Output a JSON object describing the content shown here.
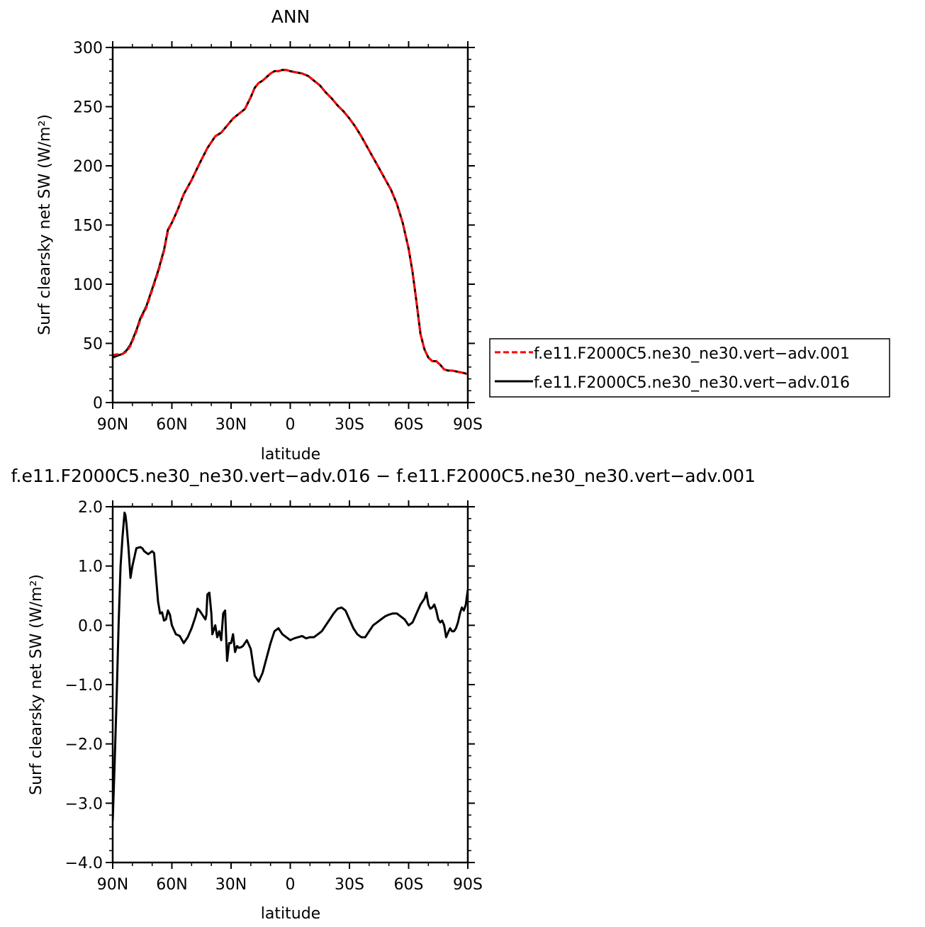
{
  "chart_data": [
    {
      "type": "line",
      "title": "ANN",
      "xlabel": "latitude",
      "ylabel": "Surf clearsky net SW (W/m²)",
      "xlim": [
        90,
        -90
      ],
      "ylim": [
        0,
        300
      ],
      "x_ticks": [
        {
          "value": 90,
          "label": "90N"
        },
        {
          "value": 60,
          "label": "60N"
        },
        {
          "value": 30,
          "label": "30N"
        },
        {
          "value": 0,
          "label": "0"
        },
        {
          "value": -30,
          "label": "30S"
        },
        {
          "value": -60,
          "label": "60S"
        },
        {
          "value": -90,
          "label": "90S"
        }
      ],
      "y_ticks": [
        {
          "value": 0,
          "label": "0"
        },
        {
          "value": 50,
          "label": "50"
        },
        {
          "value": 100,
          "label": "100"
        },
        {
          "value": 150,
          "label": "150"
        },
        {
          "value": 200,
          "label": "200"
        },
        {
          "value": 250,
          "label": "250"
        },
        {
          "value": 300,
          "label": "300"
        }
      ],
      "legend": {
        "placement": "right"
      },
      "series": [
        {
          "name": "f.e11.F2000C5.ne30_ne30.vert−adv.001",
          "color": "#ff0000",
          "dash": "dashed",
          "x": [
            90,
            87,
            85,
            83,
            81,
            78,
            76,
            73,
            70,
            67,
            64,
            62,
            60,
            57,
            54,
            50,
            46,
            42,
            38,
            35,
            33,
            31,
            29,
            26,
            23,
            20,
            18,
            16,
            14,
            12,
            10,
            8,
            6,
            4,
            2,
            0,
            -3,
            -6,
            -9,
            -12,
            -15,
            -18,
            -21,
            -24,
            -27,
            -30,
            -33,
            -36,
            -39,
            -42,
            -45,
            -48,
            -51,
            -54,
            -57,
            -60,
            -62,
            -64,
            -66,
            -68,
            -70,
            -72,
            -74,
            -76,
            -78,
            -80,
            -82,
            -85,
            -88,
            -90
          ],
          "y": [
            40,
            41,
            41,
            43,
            48,
            60,
            70,
            80,
            95,
            110,
            128,
            145,
            152,
            163,
            176,
            188,
            202,
            215,
            225,
            228,
            232,
            236,
            240,
            244,
            248,
            258,
            266,
            270,
            272,
            275,
            278,
            280,
            280,
            281,
            281,
            280,
            279,
            278,
            276,
            272,
            268,
            262,
            257,
            251,
            246,
            240,
            233,
            225,
            216,
            207,
            198,
            189,
            180,
            168,
            152,
            130,
            110,
            85,
            58,
            45,
            38,
            35,
            35,
            32,
            28,
            27,
            27,
            26,
            25,
            24
          ]
        },
        {
          "name": "f.e11.F2000C5.ne30_ne30.vert−adv.016",
          "color": "#000000",
          "dash": "solid",
          "x": [
            90,
            87,
            85,
            83,
            81,
            78,
            76,
            73,
            70,
            67,
            64,
            62,
            60,
            57,
            54,
            50,
            46,
            42,
            38,
            35,
            33,
            31,
            29,
            26,
            23,
            20,
            18,
            16,
            14,
            12,
            10,
            8,
            6,
            4,
            2,
            0,
            -3,
            -6,
            -9,
            -12,
            -15,
            -18,
            -21,
            -24,
            -27,
            -30,
            -33,
            -36,
            -39,
            -42,
            -45,
            -48,
            -51,
            -54,
            -57,
            -60,
            -62,
            -64,
            -66,
            -68,
            -70,
            -72,
            -74,
            -76,
            -78,
            -80,
            -82,
            -85,
            -88,
            -90
          ],
          "y": [
            38,
            40,
            41,
            44,
            49,
            61,
            71,
            81,
            96,
            111,
            129,
            146,
            152,
            163,
            176,
            188,
            202,
            215,
            225,
            228,
            232,
            236,
            240,
            244,
            248,
            258,
            266,
            270,
            272,
            275,
            278,
            280,
            280,
            281,
            281,
            280,
            279,
            278,
            276,
            272,
            268,
            262,
            257,
            251,
            246,
            240,
            233,
            225,
            216,
            207,
            198,
            189,
            180,
            168,
            152,
            130,
            110,
            85,
            58,
            45,
            38,
            35,
            35,
            32,
            28,
            27,
            27,
            26,
            25,
            24
          ]
        }
      ]
    },
    {
      "type": "line",
      "title": "f.e11.F2000C5.ne30_ne30.vert−adv.016 − f.e11.F2000C5.ne30_ne30.vert−adv.001",
      "xlabel": "latitude",
      "ylabel": "Surf clearsky net SW (W/m²)",
      "xlim": [
        90,
        -90
      ],
      "ylim": [
        -4.0,
        2.0
      ],
      "x_ticks": [
        {
          "value": 90,
          "label": "90N"
        },
        {
          "value": 60,
          "label": "60N"
        },
        {
          "value": 30,
          "label": "30N"
        },
        {
          "value": 0,
          "label": "0"
        },
        {
          "value": -30,
          "label": "30S"
        },
        {
          "value": -60,
          "label": "60S"
        },
        {
          "value": -90,
          "label": "90S"
        }
      ],
      "y_ticks": [
        {
          "value": -4.0,
          "label": "−4.0"
        },
        {
          "value": -3.0,
          "label": "−3.0"
        },
        {
          "value": -2.0,
          "label": "−2.0"
        },
        {
          "value": -1.0,
          "label": "−1.0"
        },
        {
          "value": 0.0,
          "label": "0.0"
        },
        {
          "value": 1.0,
          "label": "1.0"
        },
        {
          "value": 2.0,
          "label": "2.0"
        }
      ],
      "series": [
        {
          "color": "#000000",
          "dash": "solid",
          "x": [
            90,
            89,
            88,
            87,
            86,
            85,
            84,
            83.5,
            83,
            82,
            81,
            80,
            78,
            76,
            75,
            74,
            72,
            70,
            69,
            68,
            67,
            66,
            65,
            64,
            63,
            62,
            61,
            60,
            58,
            56,
            54,
            52,
            50,
            48,
            47,
            46,
            45,
            44,
            43,
            42.5,
            42,
            41,
            40,
            39.5,
            39,
            38,
            37,
            36,
            35,
            34,
            33,
            32,
            31,
            30,
            29,
            28,
            27,
            26,
            25,
            24,
            23,
            22,
            20,
            18,
            16,
            14,
            12,
            10,
            8,
            6,
            4,
            2,
            0,
            -2,
            -4,
            -6,
            -8,
            -10,
            -12,
            -14,
            -16,
            -18,
            -20,
            -22,
            -24,
            -26,
            -28,
            -30,
            -32,
            -34,
            -36,
            -38,
            -40,
            -42,
            -44,
            -46,
            -48,
            -50,
            -52,
            -54,
            -56,
            -58,
            -60,
            -62,
            -64,
            -66,
            -68,
            -69,
            -70,
            -71,
            -72,
            -73,
            -74,
            -75,
            -76,
            -77,
            -78,
            -79,
            -80,
            -81,
            -82,
            -83,
            -84,
            -85,
            -86,
            -87,
            -88,
            -89,
            -90
          ],
          "y": [
            -3.3,
            -2.3,
            -1.2,
            0.0,
            1.0,
            1.5,
            1.9,
            1.85,
            1.7,
            1.3,
            0.8,
            1.0,
            1.3,
            1.32,
            1.3,
            1.25,
            1.2,
            1.25,
            1.22,
            0.8,
            0.4,
            0.2,
            0.22,
            0.08,
            0.1,
            0.25,
            0.18,
            0.0,
            -0.15,
            -0.18,
            -0.3,
            -0.2,
            -0.05,
            0.15,
            0.28,
            0.25,
            0.2,
            0.15,
            0.1,
            0.18,
            0.52,
            0.55,
            0.2,
            -0.15,
            -0.1,
            0.0,
            -0.2,
            -0.1,
            -0.25,
            0.2,
            0.25,
            -0.6,
            -0.3,
            -0.3,
            -0.15,
            -0.45,
            -0.35,
            -0.38,
            -0.37,
            -0.35,
            -0.3,
            -0.25,
            -0.4,
            -0.85,
            -0.95,
            -0.8,
            -0.55,
            -0.3,
            -0.1,
            -0.05,
            -0.15,
            -0.2,
            -0.25,
            -0.22,
            -0.2,
            -0.18,
            -0.22,
            -0.2,
            -0.2,
            -0.15,
            -0.1,
            0.0,
            0.1,
            0.2,
            0.28,
            0.3,
            0.25,
            0.1,
            -0.05,
            -0.15,
            -0.2,
            -0.2,
            -0.1,
            0.0,
            0.05,
            0.1,
            0.15,
            0.18,
            0.2,
            0.2,
            0.15,
            0.1,
            0.0,
            0.05,
            0.2,
            0.35,
            0.45,
            0.55,
            0.35,
            0.28,
            0.3,
            0.35,
            0.25,
            0.1,
            0.05,
            0.08,
            0.0,
            -0.2,
            -0.12,
            -0.05,
            -0.1,
            -0.1,
            -0.05,
            0.05,
            0.2,
            0.3,
            0.25,
            0.35,
            0.6
          ]
        }
      ]
    }
  ]
}
